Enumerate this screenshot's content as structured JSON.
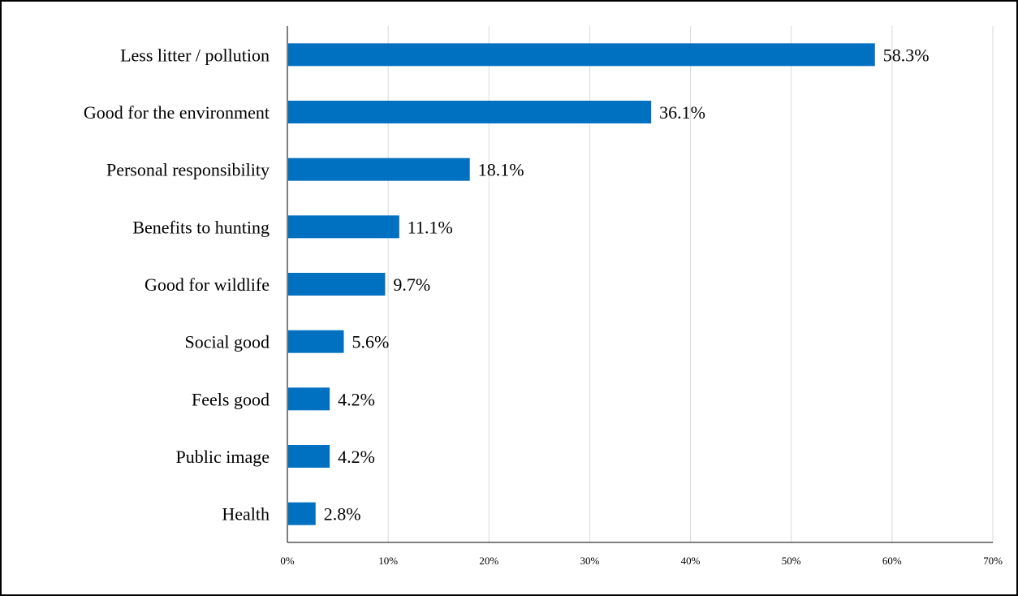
{
  "chart_data": {
    "type": "bar",
    "orientation": "horizontal",
    "categories": [
      "Less litter / pollution",
      "Good for the environment",
      "Personal responsibility",
      "Benefits to hunting",
      "Good for wildlife",
      "Social good",
      "Feels good",
      "Public image",
      "Health"
    ],
    "values": [
      58.3,
      36.1,
      18.1,
      11.1,
      9.7,
      5.6,
      4.2,
      4.2,
      2.8
    ],
    "value_labels": [
      "58.3%",
      "36.1%",
      "18.1%",
      "11.1%",
      "9.7%",
      "5.6%",
      "4.2%",
      "4.2%",
      "2.8%"
    ],
    "x_ticks": [
      "0%",
      "10%",
      "20%",
      "30%",
      "40%",
      "50%",
      "60%",
      "70%"
    ],
    "xlim": [
      0,
      70
    ],
    "grid": "vertical",
    "title": "",
    "xlabel": "",
    "ylabel": "",
    "bar_color": "#0070c0"
  }
}
